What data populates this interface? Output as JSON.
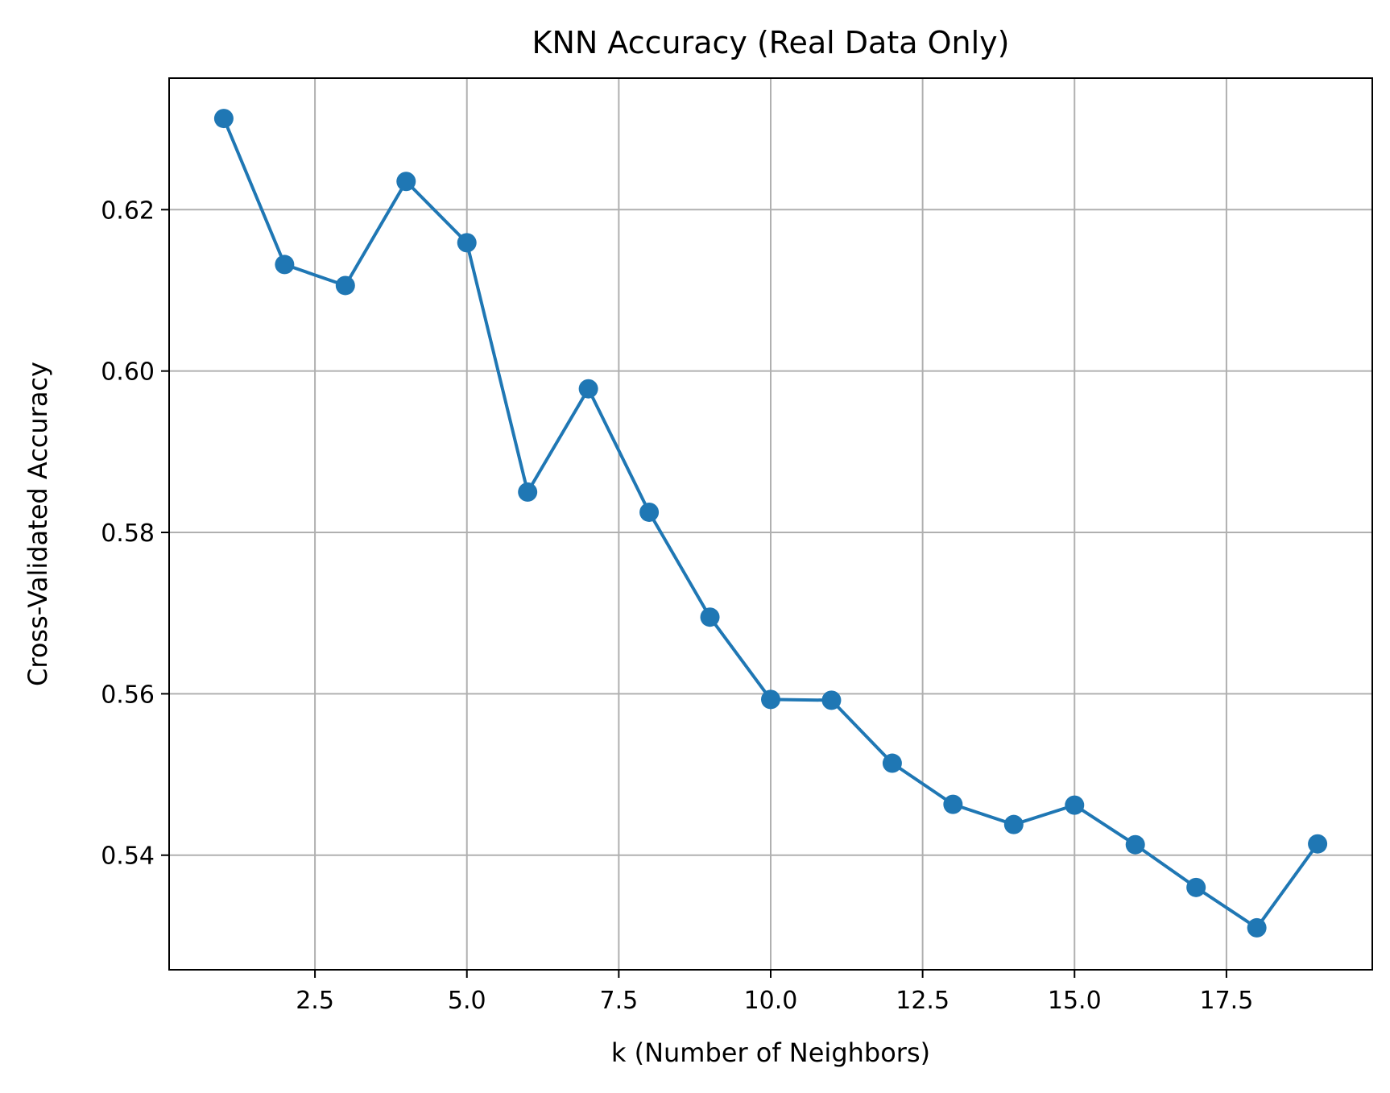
{
  "chart_data": {
    "type": "line",
    "title": "KNN Accuracy (Real Data Only)",
    "xlabel": "k (Number of Neighbors)",
    "ylabel": "Cross-Validated Accuracy",
    "xlim": [
      0.1,
      19.9
    ],
    "ylim": [
      0.5258,
      0.6363
    ],
    "xticks": [
      2.5,
      5.0,
      7.5,
      10.0,
      12.5,
      15.0,
      17.5
    ],
    "xtick_labels": [
      "2.5",
      "5.0",
      "7.5",
      "10.0",
      "12.5",
      "15.0",
      "17.5"
    ],
    "yticks": [
      0.54,
      0.56,
      0.58,
      0.6,
      0.62
    ],
    "ytick_labels": [
      "0.54",
      "0.56",
      "0.58",
      "0.60",
      "0.62"
    ],
    "grid": true,
    "marker": "circle",
    "color": "#1f77b4",
    "series": [
      {
        "x": [
          1,
          2,
          3,
          4,
          5,
          6,
          7,
          8,
          9,
          10,
          11,
          12,
          13,
          14,
          15,
          16,
          17,
          18,
          19
        ],
        "values": [
          0.6313,
          0.6132,
          0.6106,
          0.6235,
          0.6159,
          0.585,
          0.5978,
          0.5825,
          0.5695,
          0.5593,
          0.5592,
          0.5514,
          0.5463,
          0.5438,
          0.5462,
          0.5413,
          0.536,
          0.531,
          0.5414
        ]
      }
    ]
  }
}
